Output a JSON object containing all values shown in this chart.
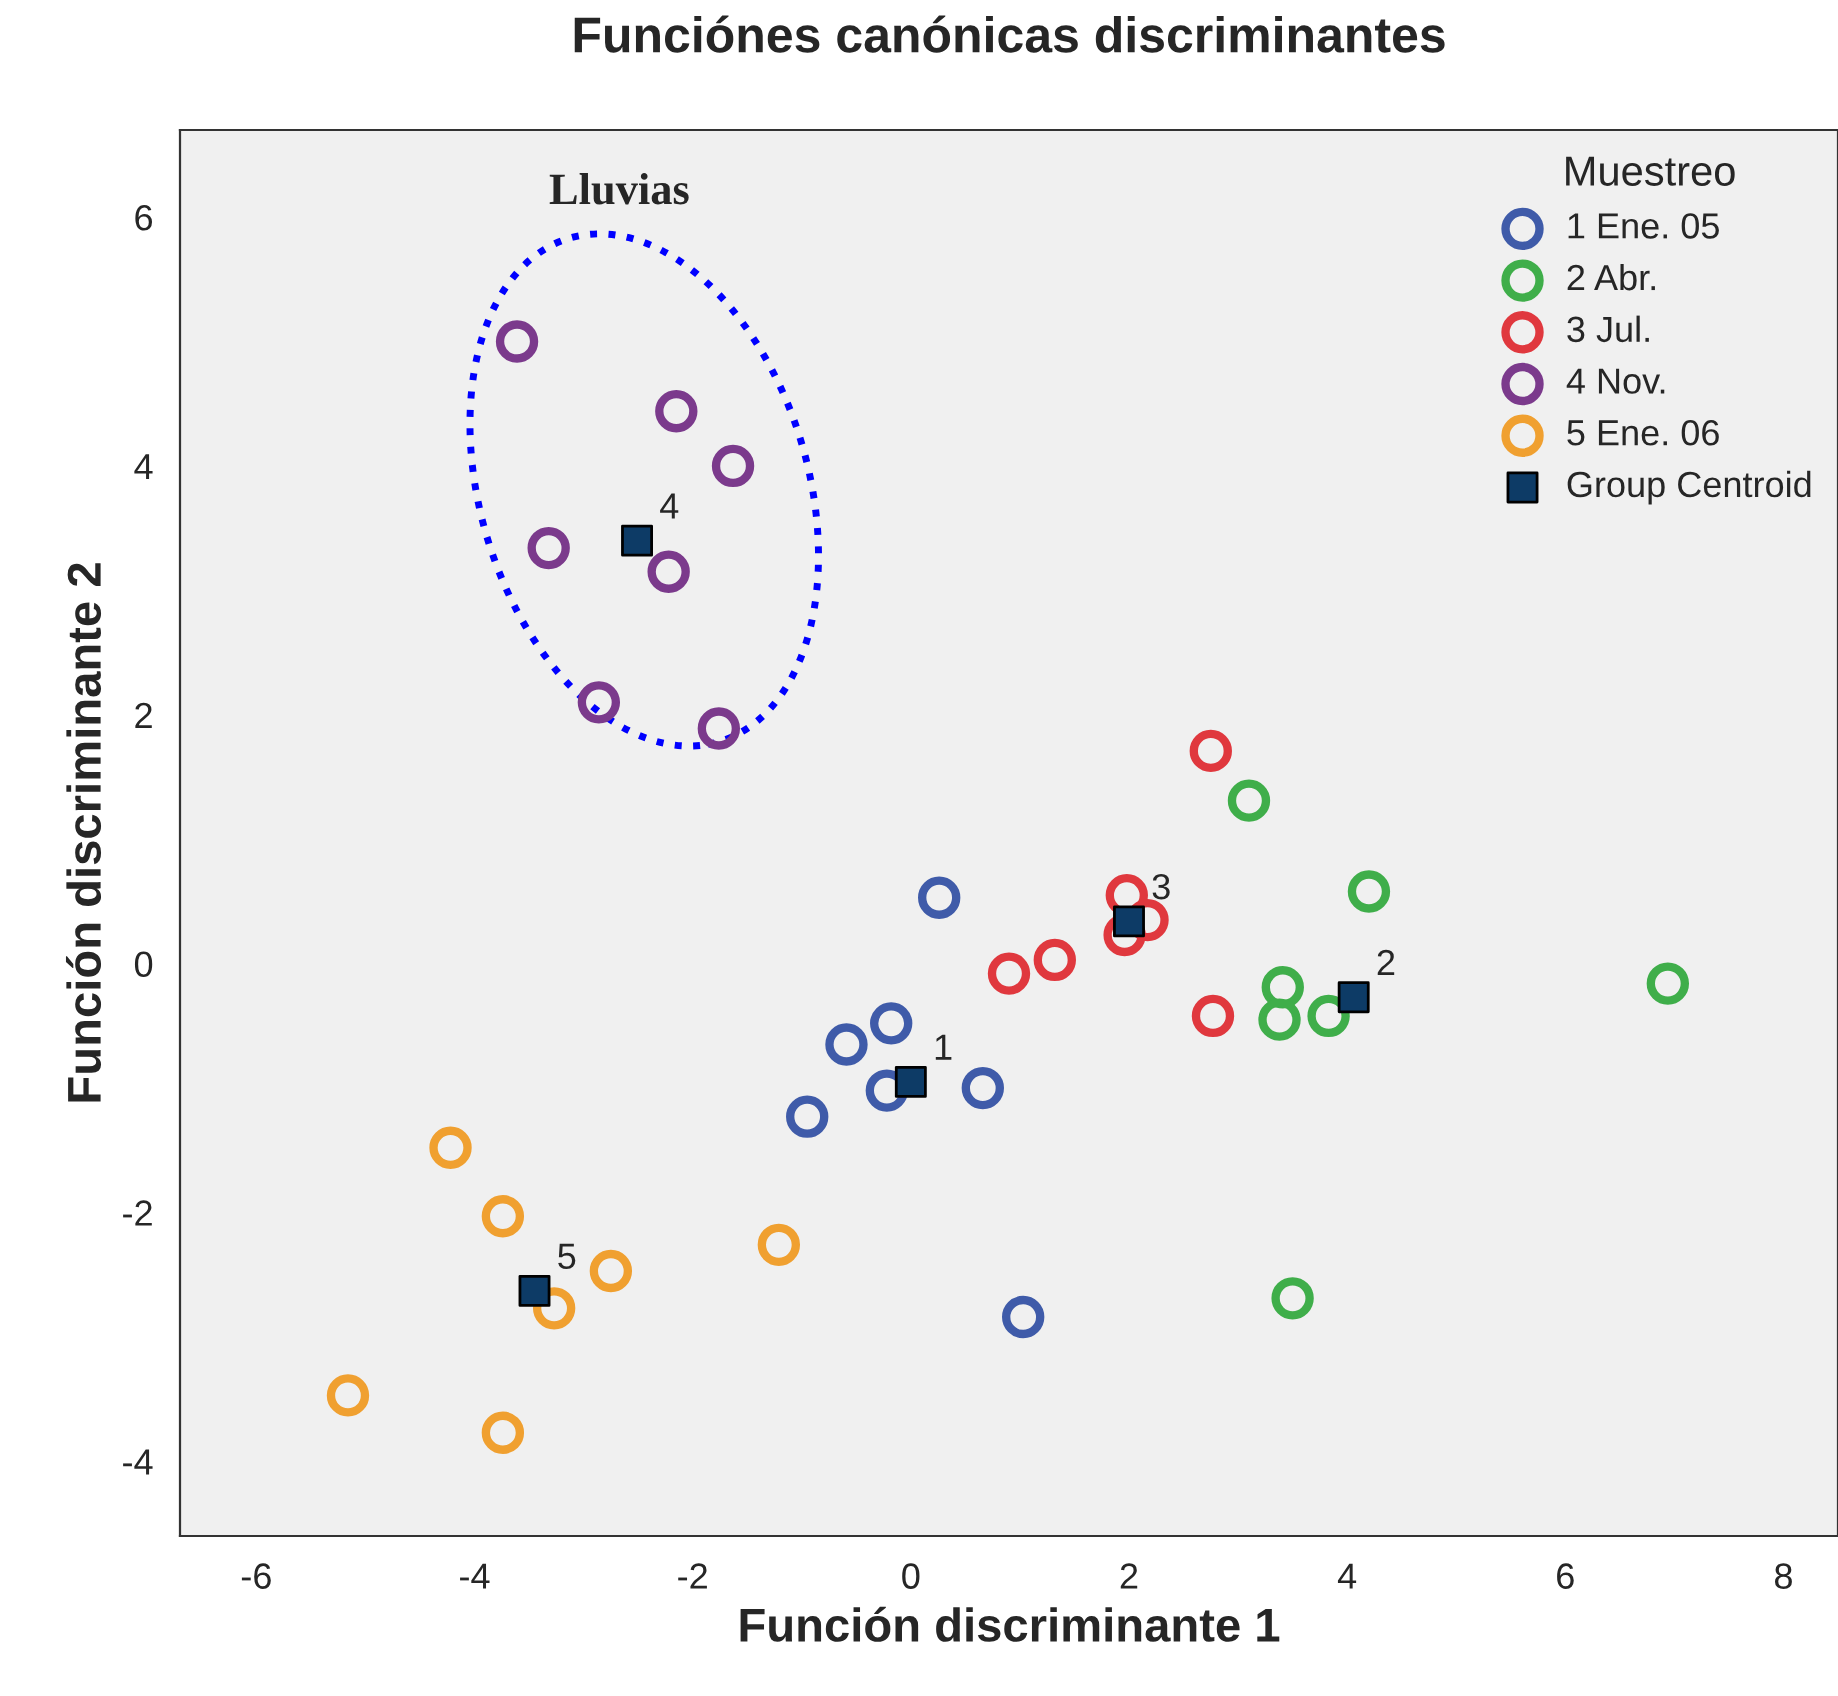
{
  "chart_data": {
    "type": "scatter",
    "title": "Funciónes canónicas discriminantes",
    "xlabel": "Función discriminante 1",
    "ylabel": "Función discriminante 2",
    "legend_title": "Muestreo",
    "xlim": [
      -6.7,
      8.5
    ],
    "ylim": [
      -4.6,
      6.7
    ],
    "xticks": [
      -6,
      -4,
      -2,
      0,
      2,
      4,
      6,
      8
    ],
    "yticks": [
      -4,
      -2,
      0,
      2,
      4,
      6
    ],
    "grid": false,
    "legend": "top right",
    "marker": "circle",
    "series": [
      {
        "name": "1 Ene. 05",
        "color": "#3f5ba9",
        "x": [
          0.26,
          -0.18,
          -0.59,
          -0.22,
          0.66,
          -0.95,
          1.03
        ],
        "values": [
          0.53,
          -0.48,
          -0.65,
          -1.02,
          -1.0,
          -1.23,
          -2.84
        ]
      },
      {
        "name": "2 Abr.",
        "color": "#3fae4a",
        "x": [
          3.1,
          4.2,
          3.41,
          3.83,
          3.38,
          6.94,
          3.5
        ],
        "values": [
          1.31,
          0.58,
          -0.19,
          -0.42,
          -0.45,
          -0.16,
          -2.69
        ]
      },
      {
        "name": "3 Jul.",
        "color": "#e0383e",
        "x": [
          2.75,
          1.98,
          2.17,
          1.96,
          1.32,
          0.9,
          2.77
        ],
        "values": [
          1.71,
          0.55,
          0.35,
          0.23,
          0.03,
          -0.08,
          -0.42
        ]
      },
      {
        "name": "4 Nov.",
        "color": "#7b3a8c",
        "x": [
          -3.61,
          -2.15,
          -1.63,
          -3.32,
          -2.22,
          -2.86,
          -1.76
        ],
        "values": [
          5.0,
          4.44,
          4.0,
          3.34,
          3.15,
          2.1,
          1.89
        ]
      },
      {
        "name": "5 Ene. 06",
        "color": "#f0a030",
        "x": [
          -4.22,
          -3.74,
          -2.75,
          -3.27,
          -1.21,
          -5.16,
          -3.74
        ],
        "values": [
          -1.48,
          -2.03,
          -2.47,
          -2.77,
          -2.26,
          -3.47,
          -3.77
        ]
      },
      {
        "name": "Group Centroid",
        "color": "#0d3b66",
        "marker": "square",
        "x": [
          0.0,
          4.06,
          2.0,
          -2.51,
          -3.45
        ],
        "values": [
          -0.95,
          -0.27,
          0.34,
          3.4,
          -2.63
        ]
      }
    ],
    "annotations": [
      {
        "text": "1",
        "x": 0.0,
        "y": -0.95
      },
      {
        "text": "2",
        "x": 4.06,
        "y": -0.27
      },
      {
        "text": "3",
        "x": 2.0,
        "y": 0.34
      },
      {
        "text": "4",
        "x": -2.51,
        "y": 3.4
      },
      {
        "text": "5",
        "x": -3.45,
        "y": -2.63
      },
      "Lluvias"
    ]
  }
}
